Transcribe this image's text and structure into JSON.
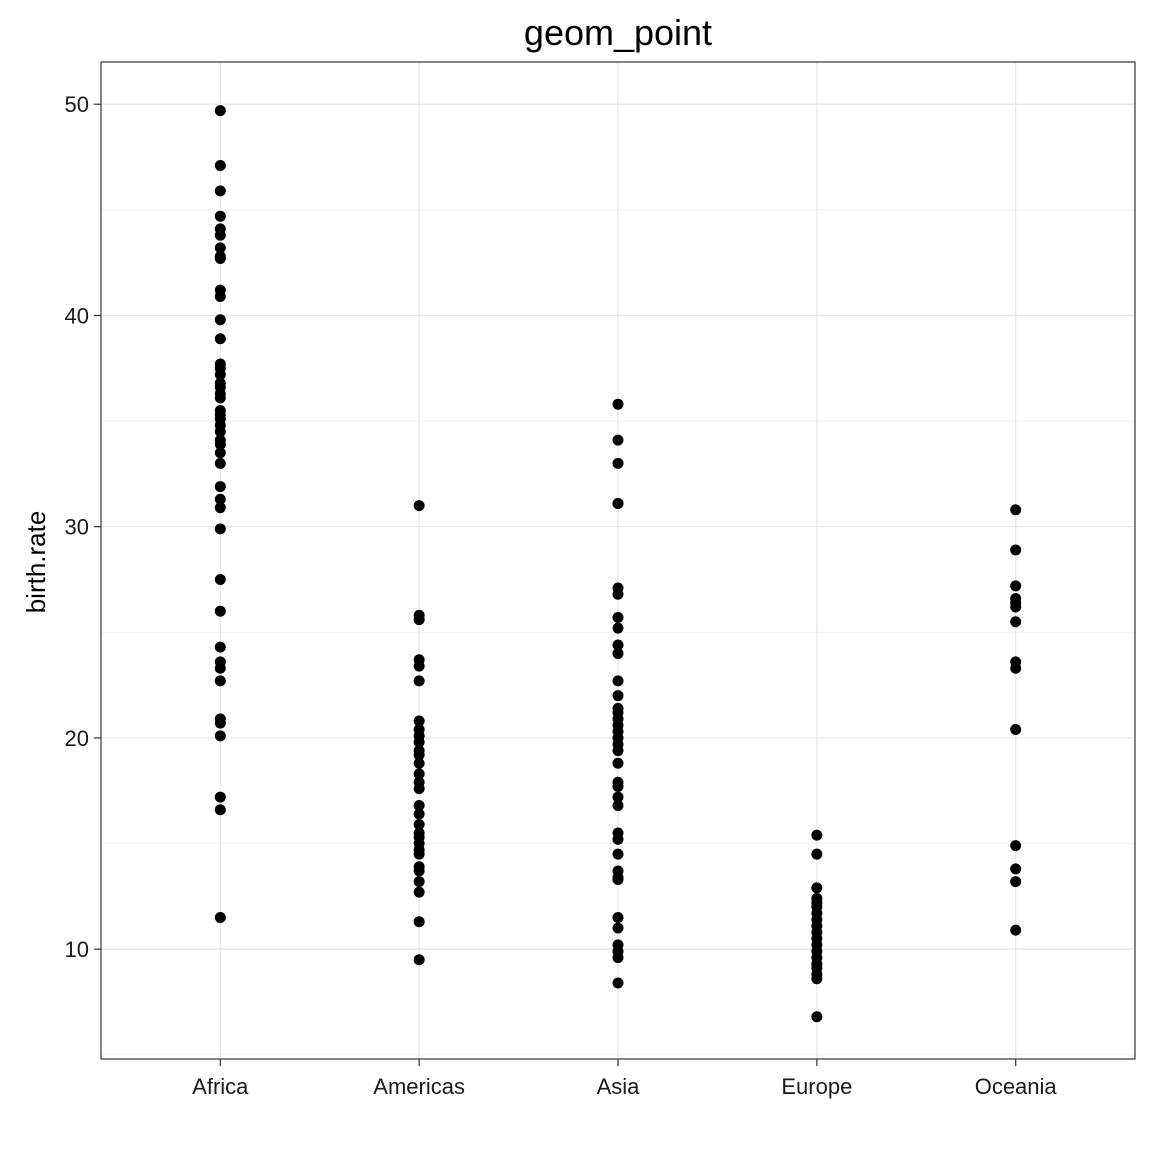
{
  "chart_data": {
    "type": "scatter",
    "title": "geom_point",
    "xlabel": "",
    "ylabel": "birth.rate",
    "categories": [
      "Africa",
      "Americas",
      "Asia",
      "Europe",
      "Oceania"
    ],
    "ylim": [
      4.8,
      52.0
    ],
    "y_ticks": [
      10,
      20,
      30,
      40,
      50
    ],
    "y_tick_labels": [
      "10",
      "20",
      "30",
      "40",
      "50"
    ],
    "grid": true,
    "point_color": "#000000",
    "series": [
      {
        "category": "Africa",
        "values": [
          49.7,
          47.1,
          45.9,
          44.7,
          44.1,
          43.8,
          43.2,
          42.8,
          42.7,
          41.2,
          40.9,
          39.8,
          38.9,
          37.7,
          37.5,
          37.2,
          36.8,
          36.6,
          36.3,
          36.1,
          35.5,
          35.3,
          35.1,
          34.8,
          34.5,
          34.1,
          33.9,
          33.5,
          33.0,
          31.9,
          31.3,
          30.9,
          29.9,
          27.5,
          26.0,
          24.3,
          23.6,
          23.3,
          22.7,
          20.9,
          20.7,
          20.1,
          17.2,
          16.6,
          11.5
        ]
      },
      {
        "category": "Americas",
        "values": [
          31.0,
          25.8,
          25.6,
          23.7,
          23.4,
          22.7,
          20.8,
          20.4,
          20.1,
          19.8,
          19.4,
          19.2,
          18.8,
          18.3,
          17.9,
          17.6,
          16.8,
          16.4,
          15.9,
          15.5,
          15.3,
          15.0,
          14.7,
          14.5,
          13.9,
          13.7,
          13.2,
          12.7,
          11.3,
          9.5
        ]
      },
      {
        "category": "Asia",
        "values": [
          35.8,
          34.1,
          33.0,
          31.1,
          31.1,
          27.1,
          26.8,
          25.7,
          25.2,
          24.4,
          24.0,
          22.7,
          22.0,
          21.4,
          21.2,
          20.9,
          20.6,
          20.3,
          20.0,
          19.7,
          19.4,
          18.8,
          17.9,
          17.7,
          17.2,
          16.8,
          15.5,
          15.2,
          14.5,
          13.7,
          13.4,
          13.3,
          11.5,
          11.0,
          10.2,
          9.9,
          9.6,
          8.4
        ]
      },
      {
        "category": "Europe",
        "values": [
          15.4,
          14.5,
          12.9,
          12.4,
          12.2,
          12.0,
          11.7,
          11.4,
          11.1,
          10.8,
          10.5,
          10.2,
          9.9,
          9.6,
          9.3,
          9.1,
          8.8,
          8.6,
          6.8
        ]
      },
      {
        "category": "Oceania",
        "values": [
          30.8,
          28.9,
          27.2,
          26.6,
          26.4,
          26.2,
          25.5,
          23.6,
          23.3,
          20.4,
          14.9,
          13.8,
          13.2,
          10.9
        ]
      }
    ]
  }
}
